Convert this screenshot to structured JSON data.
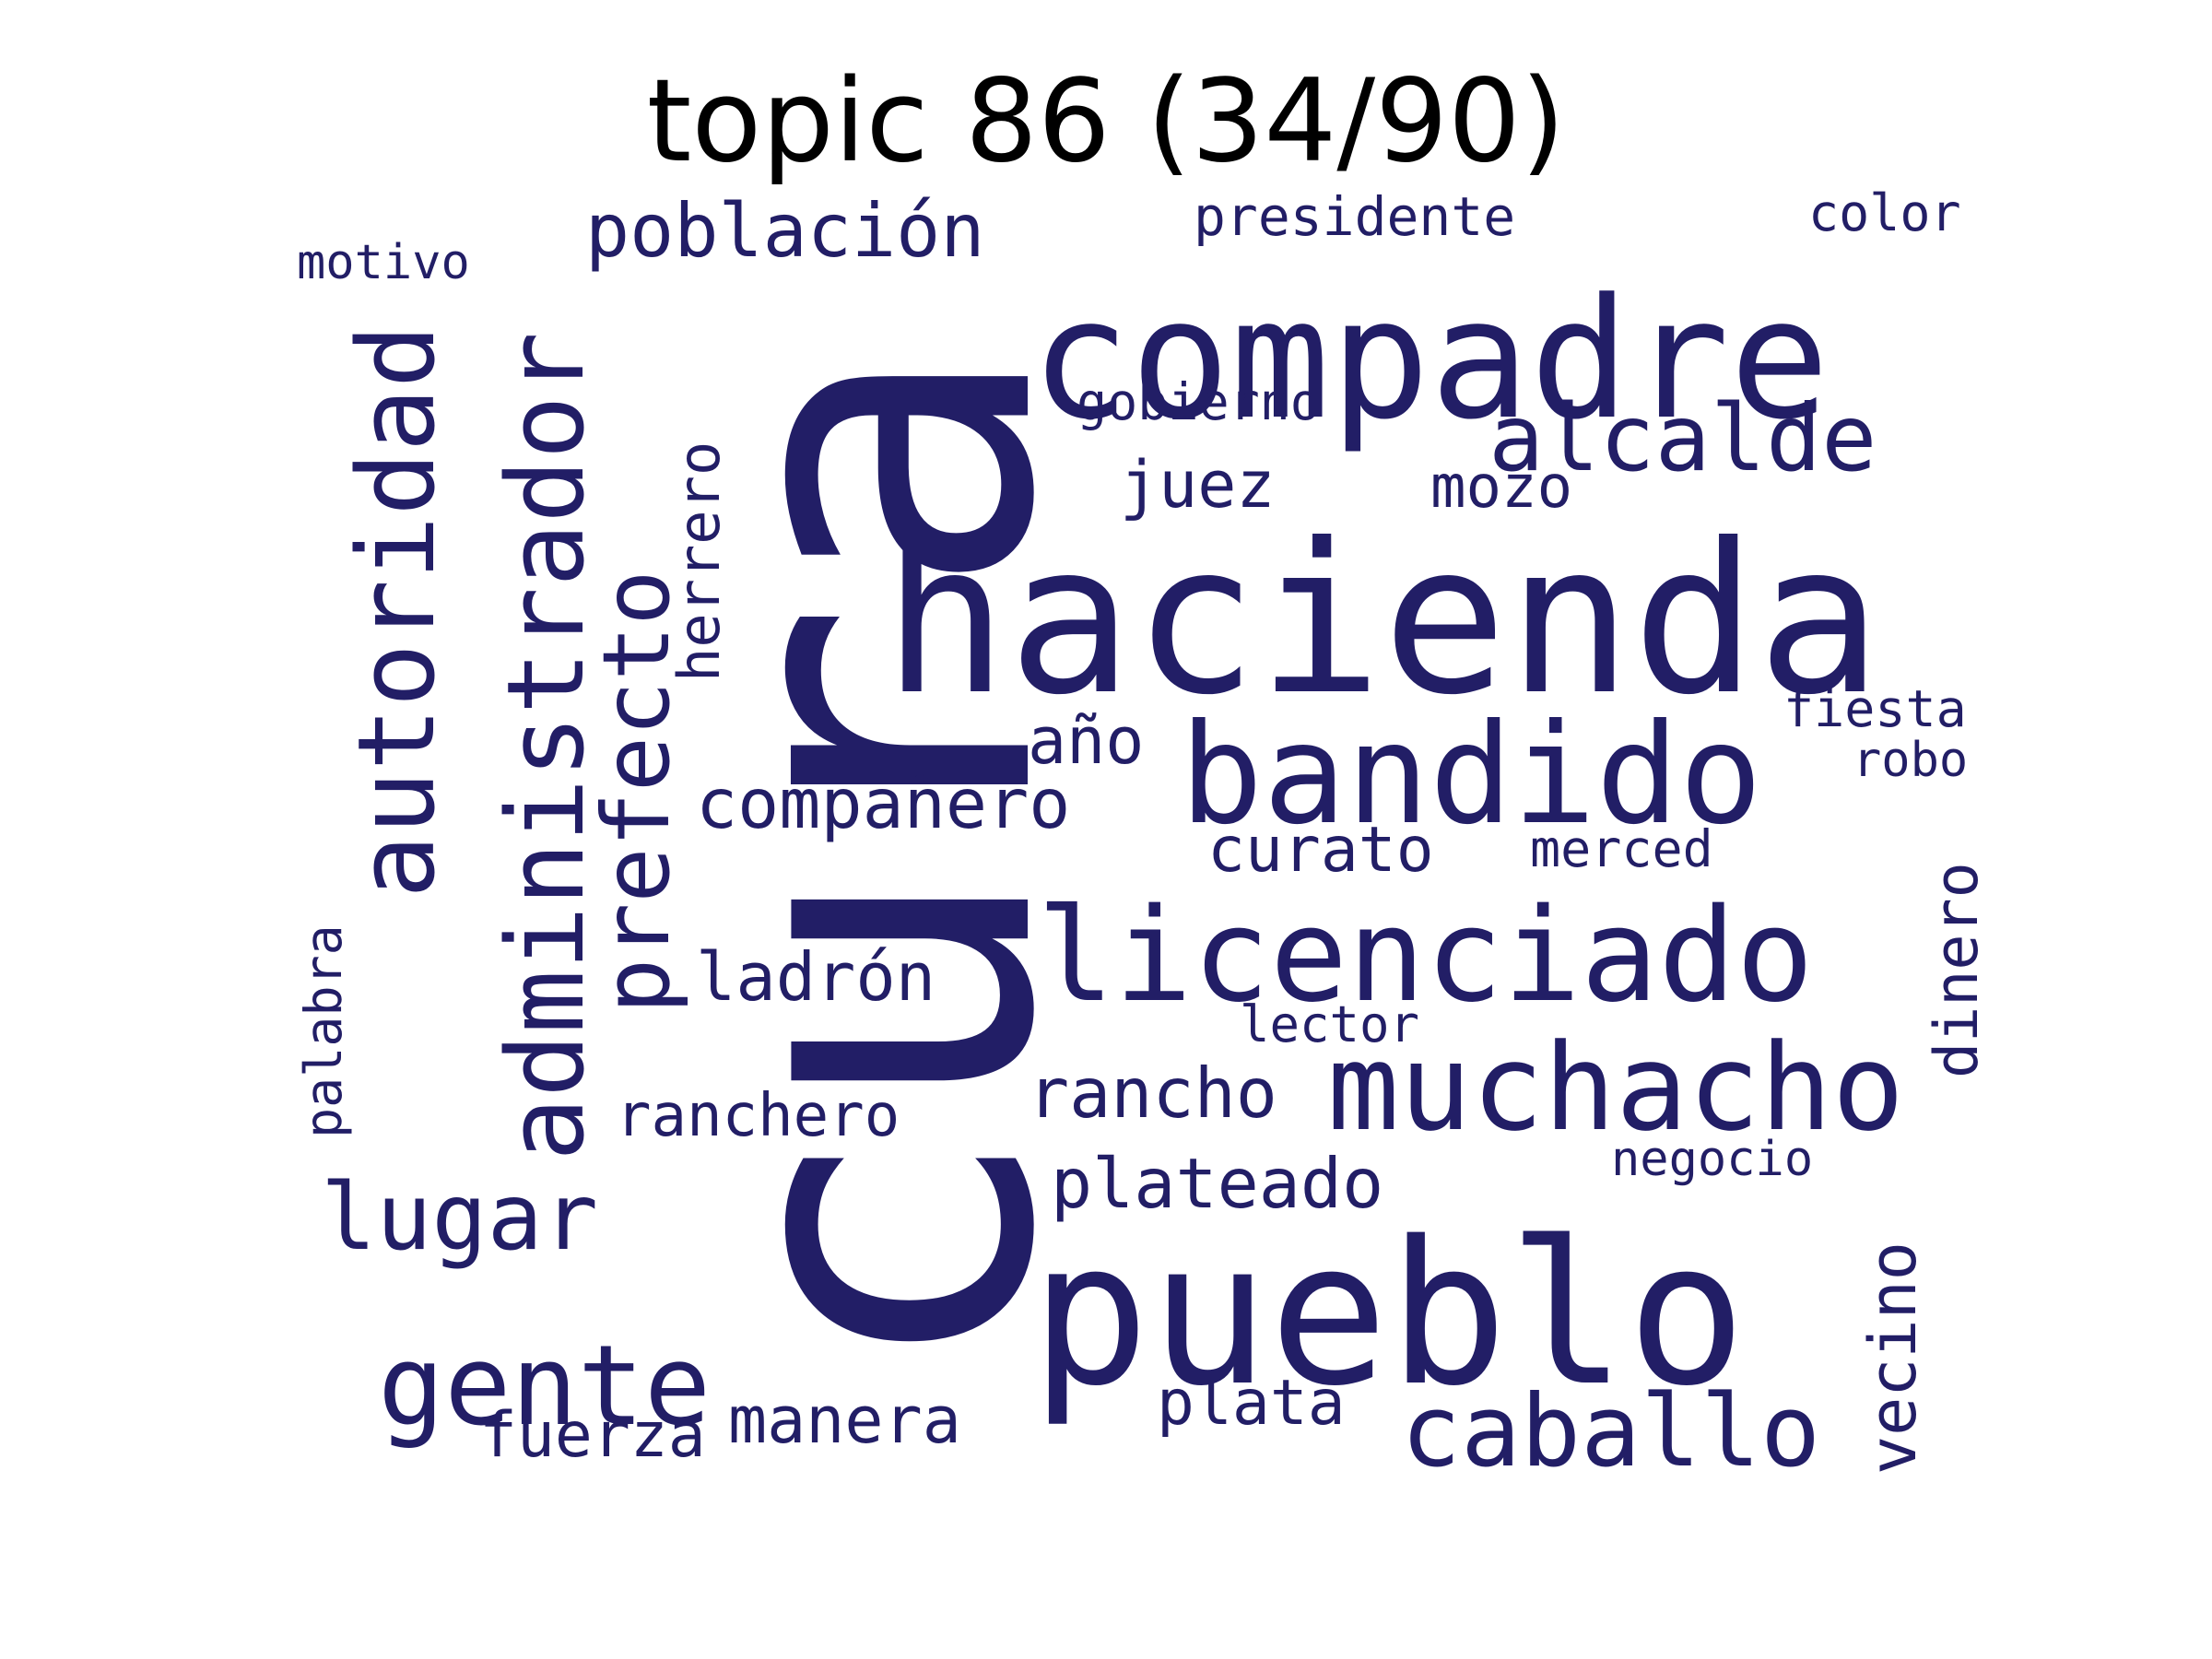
{
  "title": "topic 86 (34/90)",
  "colors": {
    "word": "#221e66",
    "title": "#000000",
    "background": "#ffffff"
  },
  "words": [
    {
      "text": "cura",
      "weight": 1.0
    },
    {
      "text": "hacienda",
      "weight": 0.62
    },
    {
      "text": "pueblo",
      "weight": 0.6
    },
    {
      "text": "compadre",
      "weight": 0.5
    },
    {
      "text": "bandido",
      "weight": 0.4
    },
    {
      "text": "licenciado",
      "weight": 0.38
    },
    {
      "text": "muchacho",
      "weight": 0.37
    },
    {
      "text": "administrador",
      "weight": 0.33
    },
    {
      "text": "autoridad",
      "weight": 0.3
    },
    {
      "text": "gente",
      "weight": 0.3
    },
    {
      "text": "caballo",
      "weight": 0.29
    },
    {
      "text": "prefecto",
      "weight": 0.28
    },
    {
      "text": "alcalde",
      "weight": 0.27
    },
    {
      "text": "lugar",
      "weight": 0.27
    },
    {
      "text": "población",
      "weight": 0.22
    },
    {
      "text": "vecino",
      "weight": 0.2
    },
    {
      "text": "compañero",
      "weight": 0.2
    },
    {
      "text": "rancho",
      "weight": 0.2
    },
    {
      "text": "plateado",
      "weight": 0.2
    },
    {
      "text": "ladrón",
      "weight": 0.19
    },
    {
      "text": "manera",
      "weight": 0.19
    },
    {
      "text": "dinero",
      "weight": 0.18
    },
    {
      "text": "herrero",
      "weight": 0.18
    },
    {
      "text": "juez",
      "weight": 0.18
    },
    {
      "text": "año",
      "weight": 0.18
    },
    {
      "text": "curato",
      "weight": 0.17
    },
    {
      "text": "fuerza",
      "weight": 0.17
    },
    {
      "text": "plata",
      "weight": 0.17
    },
    {
      "text": "ranchero",
      "weight": 0.16
    },
    {
      "text": "mozo",
      "weight": 0.16
    },
    {
      "text": "palabra",
      "weight": 0.15
    },
    {
      "text": "presidente",
      "weight": 0.14
    },
    {
      "text": "gobierno",
      "weight": 0.14
    },
    {
      "text": "lector",
      "weight": 0.13
    },
    {
      "text": "fiesta",
      "weight": 0.13
    },
    {
      "text": "merced",
      "weight": 0.13
    },
    {
      "text": "color",
      "weight": 0.13
    },
    {
      "text": "motivo",
      "weight": 0.13
    },
    {
      "text": "negocio",
      "weight": 0.13
    },
    {
      "text": "robo",
      "weight": 0.12
    }
  ]
}
